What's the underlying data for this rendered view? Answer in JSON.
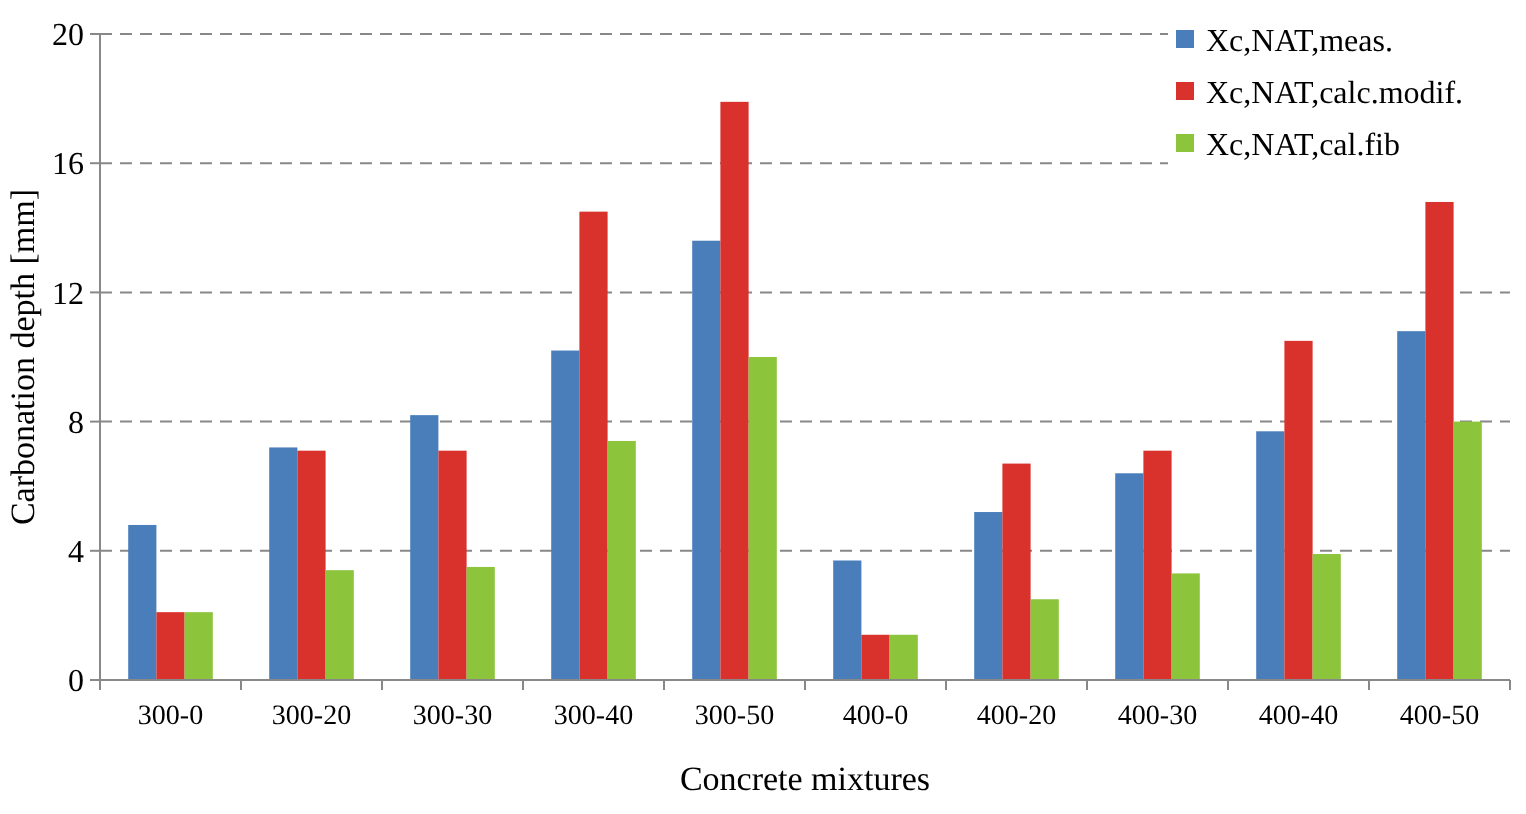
{
  "chart_data": {
    "type": "bar",
    "xlabel": "Concrete mixtures",
    "ylabel": "Carbonation depth [mm]",
    "categories": [
      "300-0",
      "300-20",
      "300-30",
      "300-40",
      "300-50",
      "400-0",
      "400-20",
      "400-30",
      "400-40",
      "400-50"
    ],
    "series": [
      {
        "name": "Xc,NAT,meas.",
        "color": "#4a7ebb",
        "values": [
          4.8,
          7.2,
          8.2,
          10.2,
          13.6,
          3.7,
          5.2,
          6.4,
          7.7,
          10.8
        ]
      },
      {
        "name": "Xc,NAT,calc.modif.",
        "color": "#d9312b",
        "values": [
          2.1,
          7.1,
          7.1,
          14.5,
          17.9,
          1.4,
          6.7,
          7.1,
          10.5,
          14.8
        ]
      },
      {
        "name": "Xc,NAT,cal.fib",
        "color": "#8cc43c",
        "values": [
          2.1,
          3.4,
          3.5,
          7.4,
          10.0,
          1.4,
          2.5,
          3.3,
          3.9,
          8.0
        ]
      }
    ],
    "ylim": [
      0,
      20
    ],
    "yticks": [
      0,
      4,
      8,
      12,
      16,
      20
    ],
    "grid": "y",
    "legend": "top right"
  }
}
